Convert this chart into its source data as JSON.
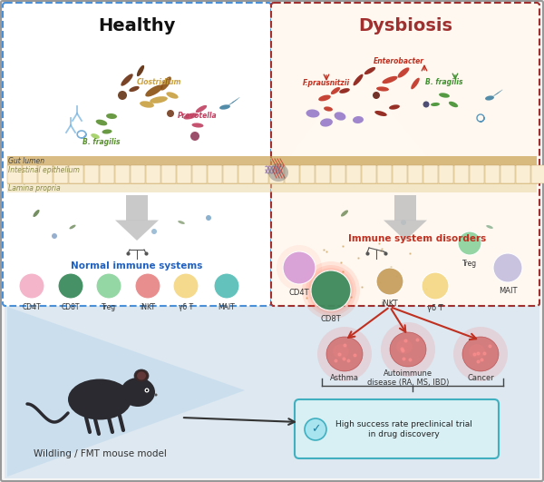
{
  "fig_width": 6.0,
  "fig_height": 5.31,
  "healthy_box_color": "#4a90d9",
  "dysbiosis_box_color": "#a03030",
  "healthy_title": "Healthy",
  "dysbiosis_title": "Dysbiosis",
  "gut_lumen_label": "Gut lumen",
  "intestinal_label": "Intestinal epithelium",
  "lamina_label": "Lamina propria",
  "normal_immune_label": "Normal immune systems",
  "immune_disorder_label": "Immune system disorders",
  "healthy_cells": [
    "CD4T",
    "CD8T",
    "Treg",
    "iNKT",
    "γδ T",
    "MAIT"
  ],
  "healthy_cell_colors": [
    "#f4b0c8",
    "#3d8b5e",
    "#8fd4a0",
    "#e88888",
    "#f5d888",
    "#5bbfb8"
  ],
  "dysbiosis_cell_colors_map": {
    "CD4T": "#d8a0d8",
    "CD8T": "#3d8b5e",
    "iNKT": "#c8a060",
    "gd_T": "#f5d888",
    "Treg": "#8fd4a0",
    "MAIT": "#c8c0e0"
  },
  "clostridium_color": "#8B5010",
  "bfragilis_h_color": "#5a9030",
  "prevotella_color": "#c04060",
  "enterobacter_color": "#c03020",
  "fpra_color": "#c03020",
  "bfragilis_d_color": "#409030",
  "purple_bact_color": "#8060c0",
  "dark_rod_color": "#6b3010",
  "bottom_label": "Wildling / FMT mouse model",
  "diseases": [
    "Asthma",
    "Autoimmune\ndisease (RA, MS, IBD)",
    "Cancer"
  ],
  "success_box_label": "High success rate preclinical trial\nin drug discovery",
  "arrow_color": "#c03020",
  "bottom_bg": "#c8dce8",
  "outer_border_color": "#999999",
  "white_bg": "#ffffff",
  "cream_bg": "#fff8f0"
}
